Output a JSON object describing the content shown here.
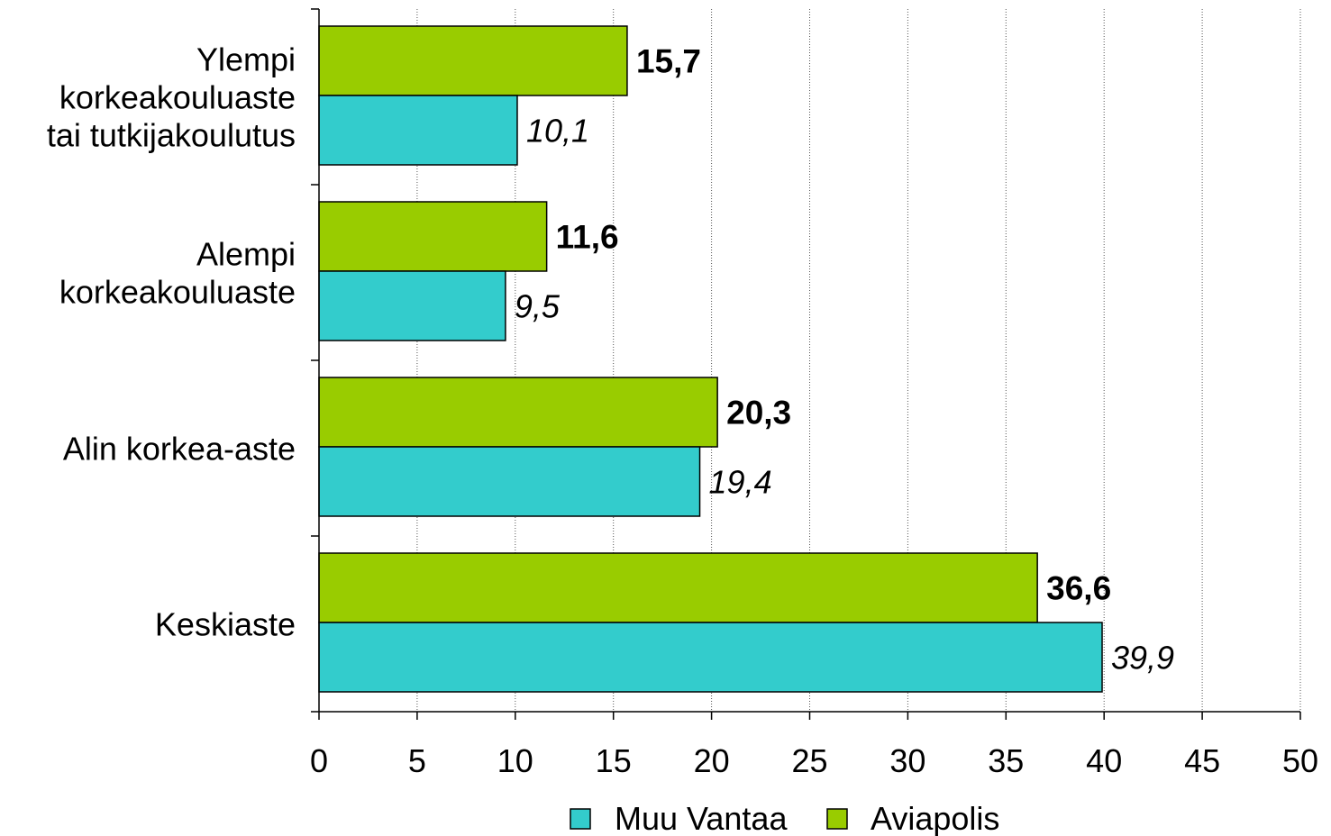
{
  "chart_data": {
    "type": "bar",
    "orientation": "horizontal",
    "categories": [
      [
        "Ylempi",
        "korkeakouluaste",
        "tai tutkijakoulutus"
      ],
      [
        "Alempi",
        "korkeakouluaste"
      ],
      [
        "Alin korkea-aste"
      ],
      [
        "Keskiaste"
      ]
    ],
    "series": [
      {
        "name": "Aviapolis",
        "color": "#99cc00",
        "label_style": "bold",
        "values": [
          15.7,
          11.6,
          20.3,
          36.6
        ],
        "labels": [
          "15,7",
          "11,6",
          "20,3",
          "36,6"
        ]
      },
      {
        "name": "Muu Vantaa",
        "color": "#33cccc",
        "label_style": "italic",
        "values": [
          10.1,
          9.5,
          19.4,
          39.9
        ],
        "labels": [
          "10,1",
          "9,5",
          "19,4",
          "39,9"
        ]
      }
    ],
    "xlim": [
      0,
      50
    ],
    "x_ticks": [
      0,
      5,
      10,
      15,
      20,
      25,
      30,
      35,
      40,
      45,
      50
    ],
    "grid": "vertical-dotted",
    "legend": {
      "placement": "bottom-center",
      "entries": [
        {
          "name": "Muu Vantaa",
          "color": "#33cccc"
        },
        {
          "name": "Aviapolis",
          "color": "#99cc00"
        }
      ]
    }
  }
}
